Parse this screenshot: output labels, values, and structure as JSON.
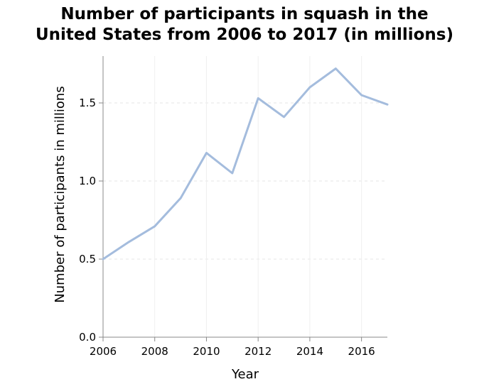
{
  "chart_data": {
    "type": "line",
    "title": "Number of participants in squash in the United States from 2006 to 2017 (in millions)",
    "title_lines": [
      "Number of participants in squash in the",
      "United States from 2006 to 2017 (in millions)"
    ],
    "xlabel": "Year",
    "ylabel": "Number of participants in millions",
    "x": [
      2006,
      2007,
      2008,
      2009,
      2010,
      2011,
      2012,
      2013,
      2014,
      2015,
      2016,
      2017
    ],
    "values": [
      0.5,
      0.61,
      0.71,
      0.89,
      1.18,
      1.05,
      1.53,
      1.41,
      1.6,
      1.72,
      1.55,
      1.49
    ],
    "xlim": [
      2006,
      2017
    ],
    "ylim": [
      0,
      1.8
    ],
    "x_ticks": [
      2006,
      2008,
      2010,
      2012,
      2014,
      2016
    ],
    "x_tick_labels": [
      "2006",
      "2008",
      "2010",
      "2012",
      "2014",
      "2016"
    ],
    "y_ticks": [
      0,
      0.5,
      1.0,
      1.5
    ],
    "y_tick_labels": [
      "0.0",
      "0.5",
      "1.0",
      "1.5"
    ],
    "grid": true,
    "legend": "none",
    "line_color": "#a4bcdd"
  }
}
